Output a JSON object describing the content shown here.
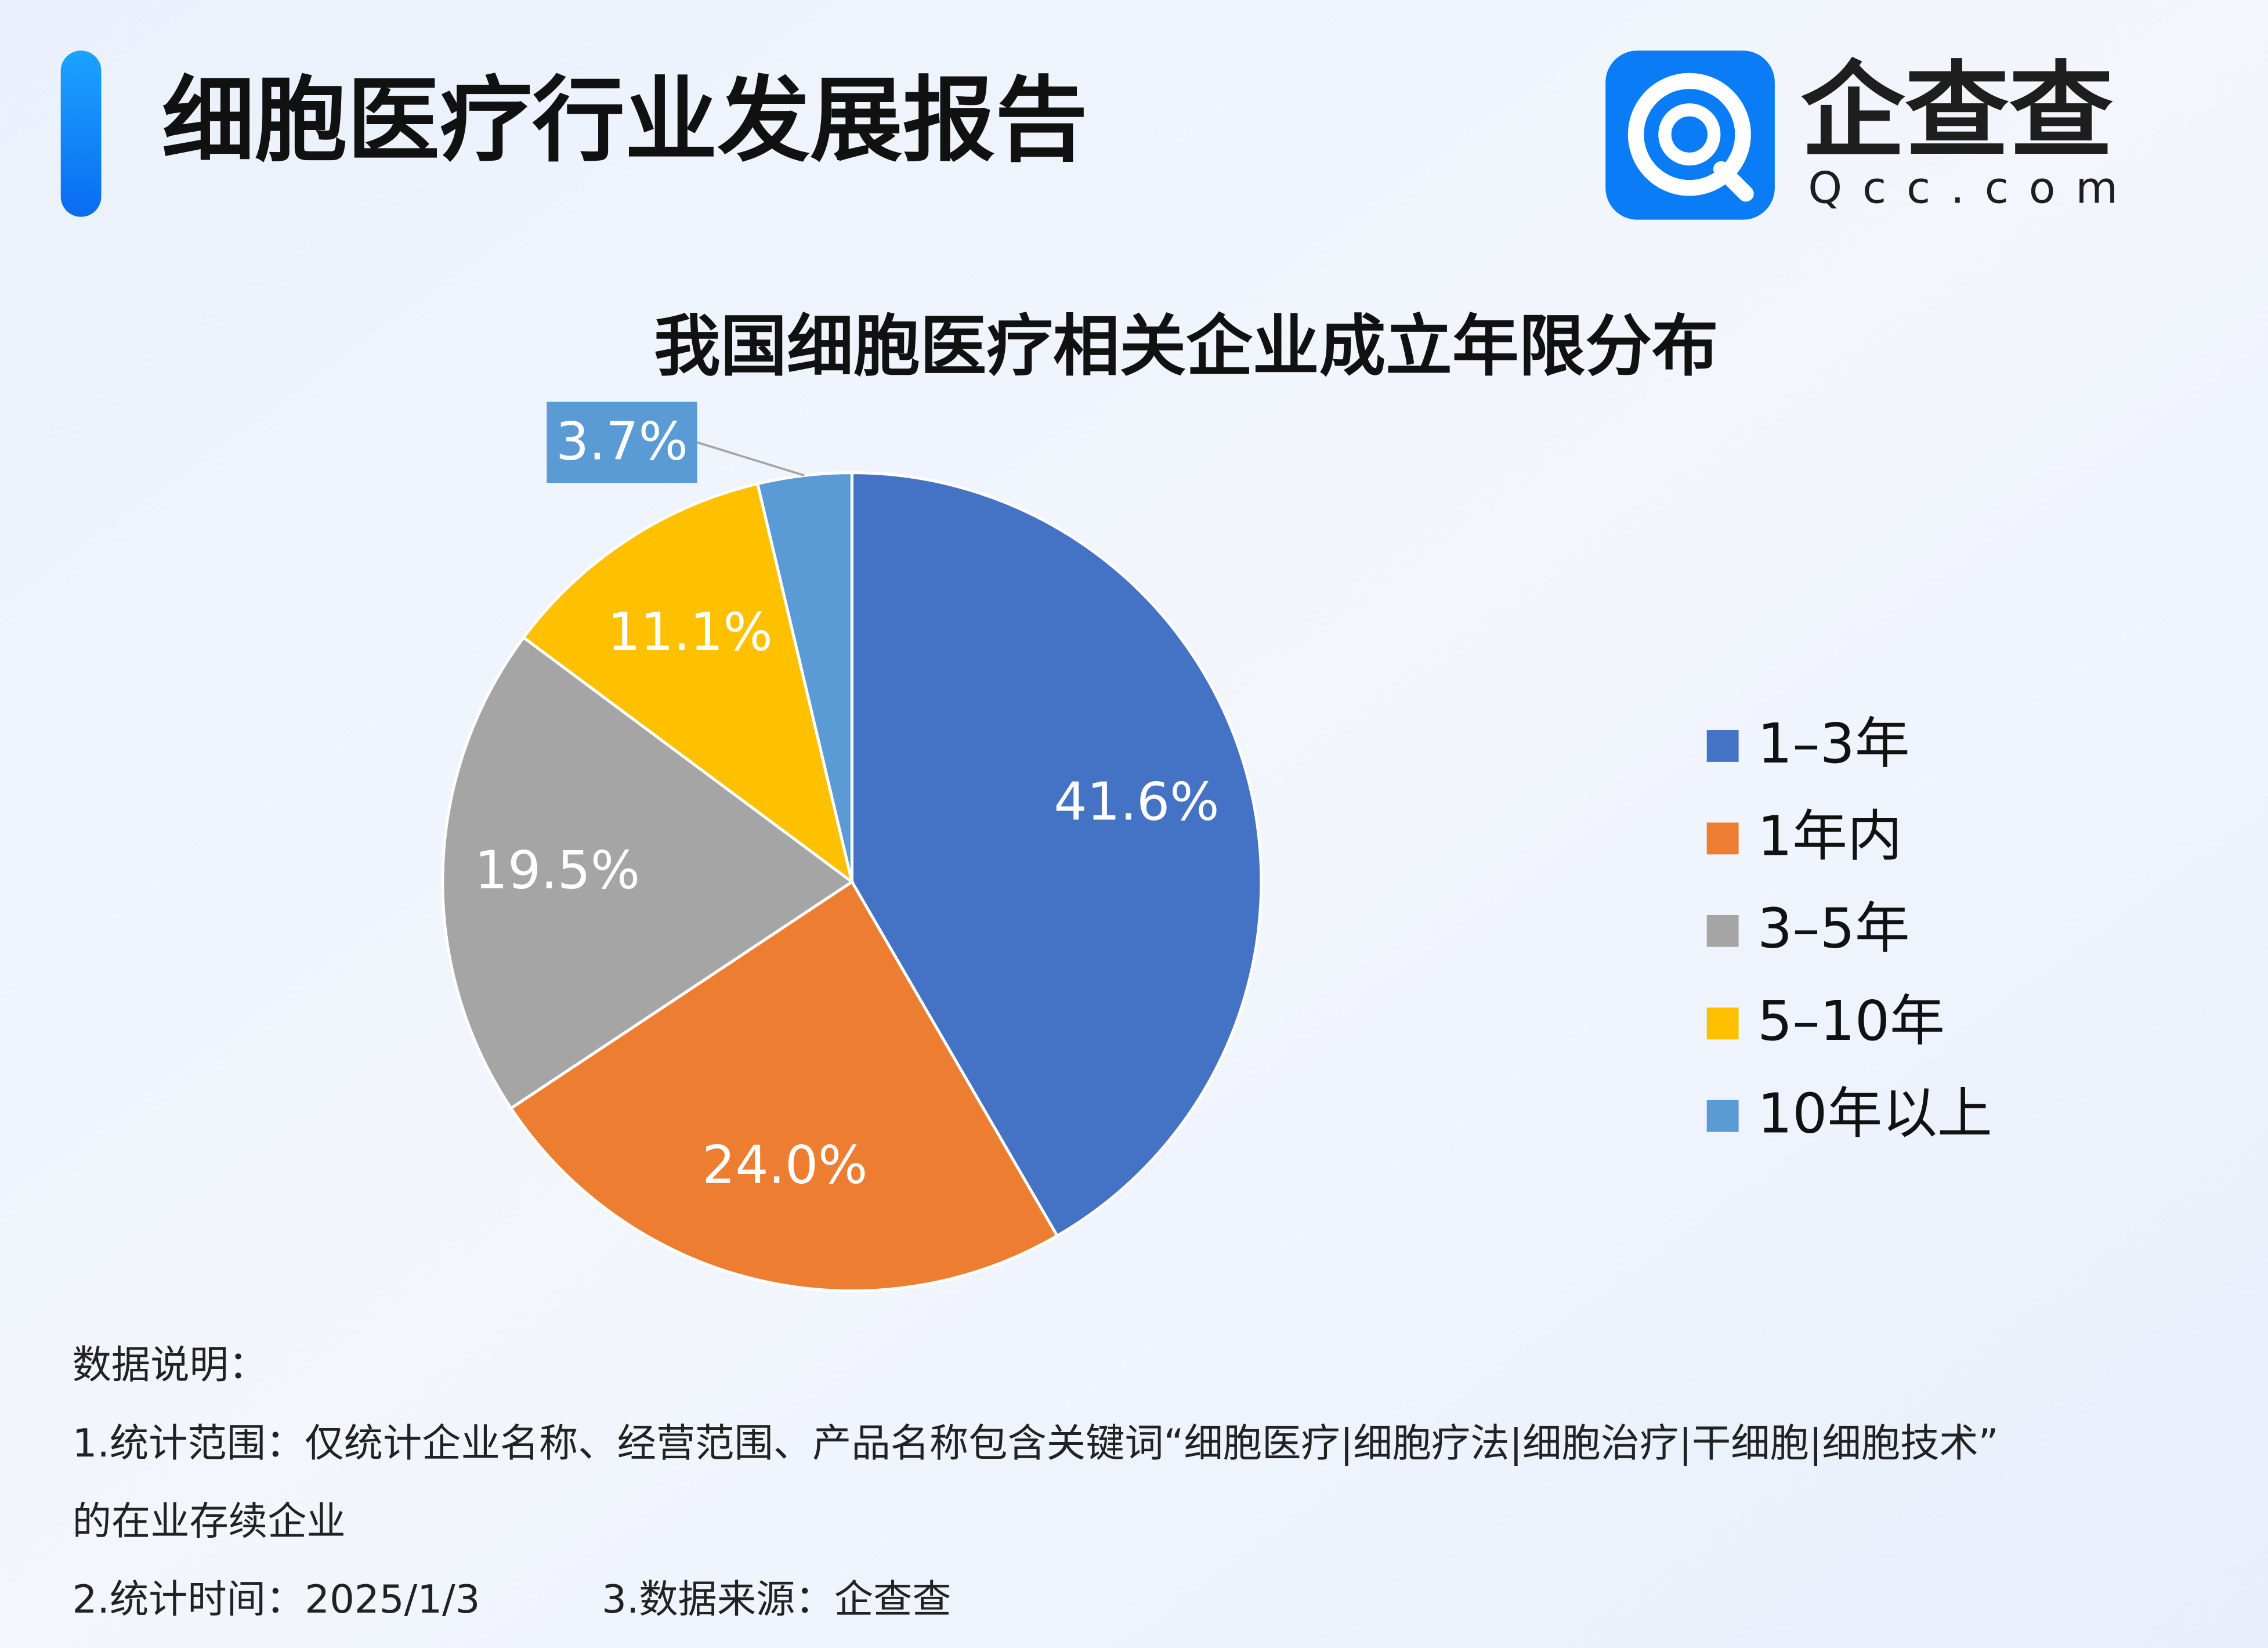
{
  "header": {
    "title": "细胞医疗行业发展报告",
    "brand": "企查查",
    "brand_url": "Qcc.com"
  },
  "chart_data": {
    "type": "pie",
    "title": "我国细胞医疗相关企业成立年限分布",
    "categories": [
      "1–3年",
      "1年内",
      "3–5年",
      "5–10年",
      "10年以上"
    ],
    "values": [
      41.6,
      24.0,
      19.5,
      11.1,
      3.7
    ],
    "value_labels": [
      "41.6%",
      "24.0%",
      "19.5%",
      "11.1%",
      "3.7%"
    ],
    "colors": [
      "#4472c4",
      "#ed7d31",
      "#a5a5a5",
      "#ffc000",
      "#5b9bd5"
    ],
    "legend": "right"
  },
  "notes": [
    "数据说明：",
    "1.统计范围：仅统计企业名称、经营范围、产品名称包含关键词“细胞医疗|细胞疗法|细胞治疗|干细胞|细胞技术”",
    "的在业存续企业",
    "2.统计时间：2025/1/3",
    "3.数据来源：企查查"
  ]
}
